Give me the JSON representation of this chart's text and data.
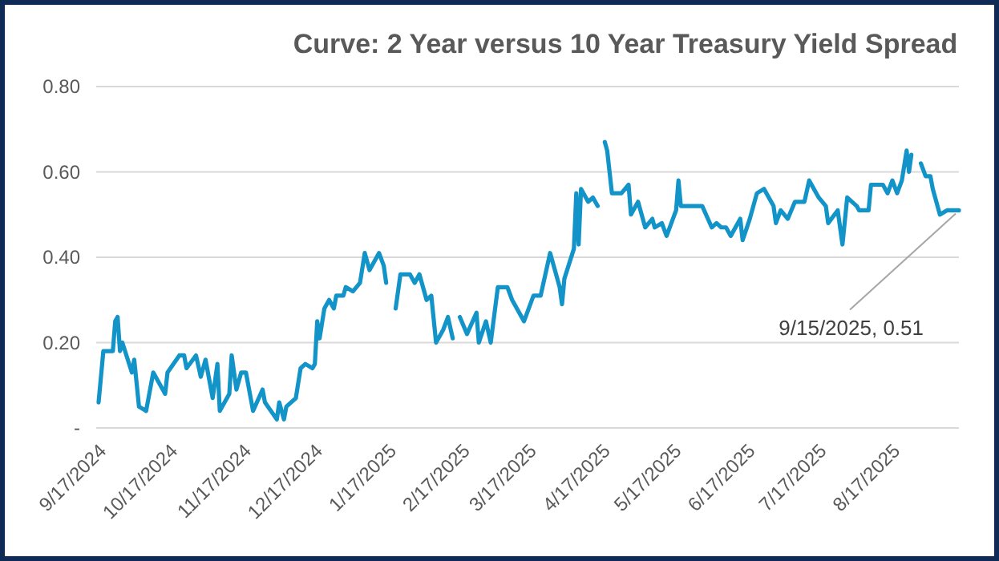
{
  "chart_data": {
    "type": "line",
    "title": "Curve: 2 Year versus 10 Year Treasury Yield Spread",
    "x": [
      "2024-09-18",
      "2024-09-20",
      "2024-09-24",
      "2024-09-25",
      "2024-09-26",
      "2024-09-27",
      "2024-09-28",
      "2024-10-02",
      "2024-10-03",
      "2024-10-05",
      "2024-10-08",
      "2024-10-11",
      "2024-10-16",
      "2024-10-17",
      "2024-10-22",
      "2024-10-24",
      "2024-10-25",
      "2024-10-29",
      "2024-10-31",
      "2024-11-02",
      "2024-11-05",
      "2024-11-07",
      "2024-11-08",
      "2024-11-12",
      "2024-11-13",
      "2024-11-15",
      "2024-11-17",
      "2024-11-19",
      "2024-11-22",
      "2024-11-26",
      "2024-11-27",
      "2024-12-02",
      "2024-12-03",
      "2024-12-05",
      "2024-12-06",
      "2024-12-10",
      "2024-12-12",
      "2024-12-14",
      "2024-12-17",
      "2024-12-18",
      "2024-12-19",
      "2024-12-20",
      "2024-12-22",
      "2024-12-24",
      "2024-12-26",
      "2024-12-27",
      "2024-12-30",
      "2024-12-31",
      "2025-01-03",
      "2025-01-06",
      "2025-01-08",
      "2025-01-10",
      "2025-01-14",
      "2025-01-16",
      "2025-01-17",
      "2025-01-19",
      "2025-01-21",
      "2025-01-23",
      "2025-01-27",
      "2025-01-29",
      "2025-01-31",
      "2025-02-03",
      "2025-02-05",
      "2025-02-07",
      "2025-02-10",
      "2025-02-12",
      "2025-02-14",
      "2025-02-15",
      "2025-02-17",
      "2025-02-20",
      "2025-02-24",
      "2025-02-25",
      "2025-02-28",
      "2025-03-02",
      "2025-03-05",
      "2025-03-09",
      "2025-03-11",
      "2025-03-16",
      "2025-03-20",
      "2025-03-23",
      "2025-03-27",
      "2025-03-31",
      "2025-04-01",
      "2025-04-02",
      "2025-04-06",
      "2025-04-07",
      "2025-04-08",
      "2025-04-09",
      "2025-04-12",
      "2025-04-14",
      "2025-04-16",
      "2025-04-18",
      "2025-04-19",
      "2025-04-20",
      "2025-04-22",
      "2025-04-26",
      "2025-04-29",
      "2025-04-30",
      "2025-05-03",
      "2025-05-06",
      "2025-05-09",
      "2025-05-10",
      "2025-05-13",
      "2025-05-15",
      "2025-05-19",
      "2025-05-20",
      "2025-05-21",
      "2025-05-28",
      "2025-05-30",
      "2025-06-03",
      "2025-06-05",
      "2025-06-07",
      "2025-06-09",
      "2025-06-11",
      "2025-06-15",
      "2025-06-16",
      "2025-06-19",
      "2025-06-22",
      "2025-06-25",
      "2025-06-29",
      "2025-06-30",
      "2025-07-02",
      "2025-07-05",
      "2025-07-08",
      "2025-07-12",
      "2025-07-14",
      "2025-07-18",
      "2025-07-21",
      "2025-07-22",
      "2025-07-26",
      "2025-07-28",
      "2025-07-30",
      "2025-08-03",
      "2025-08-04",
      "2025-08-08",
      "2025-08-09",
      "2025-08-12",
      "2025-08-14",
      "2025-08-16",
      "2025-08-18",
      "2025-08-20",
      "2025-08-22",
      "2025-08-24",
      "2025-08-25",
      "2025-08-26",
      "2025-08-28",
      "2025-08-30",
      "2025-09-01",
      "2025-09-03",
      "2025-09-04",
      "2025-09-07",
      "2025-09-10",
      "2025-09-12",
      "2025-09-15"
    ],
    "series": [
      {
        "color": "#1394c8",
        "values": [
          0.06,
          0.18,
          0.18,
          0.25,
          0.26,
          0.18,
          0.2,
          0.13,
          0.16,
          0.05,
          0.04,
          0.13,
          0.08,
          0.13,
          0.17,
          0.17,
          0.14,
          0.17,
          0.12,
          0.16,
          0.07,
          0.15,
          0.04,
          0.08,
          0.17,
          0.09,
          0.13,
          0.13,
          0.04,
          0.09,
          0.06,
          0.02,
          0.06,
          0.02,
          0.05,
          0.07,
          0.14,
          0.15,
          0.14,
          0.15,
          0.25,
          0.21,
          0.28,
          0.3,
          0.28,
          0.31,
          0.31,
          0.33,
          0.32,
          0.34,
          0.41,
          0.37,
          0.41,
          0.38,
          0.34,
          null,
          0.28,
          0.36,
          0.36,
          0.34,
          0.36,
          0.3,
          0.31,
          0.2,
          0.23,
          0.26,
          0.21,
          null,
          0.26,
          0.22,
          0.27,
          0.2,
          0.25,
          0.2,
          0.33,
          0.33,
          0.3,
          0.25,
          0.31,
          0.31,
          0.41,
          0.33,
          0.29,
          0.35,
          0.42,
          0.55,
          0.43,
          0.56,
          0.53,
          0.54,
          0.52,
          null,
          0.67,
          0.65,
          0.55,
          0.55,
          0.57,
          0.5,
          0.53,
          0.47,
          0.49,
          0.47,
          0.48,
          0.45,
          0.51,
          0.58,
          0.52,
          0.52,
          0.52,
          0.47,
          0.48,
          0.47,
          0.47,
          0.45,
          0.49,
          0.44,
          0.49,
          0.55,
          0.56,
          0.52,
          0.48,
          0.51,
          0.49,
          0.53,
          0.53,
          0.58,
          0.54,
          0.52,
          0.48,
          0.51,
          0.43,
          0.54,
          0.52,
          0.51,
          0.51,
          0.57,
          0.57,
          0.57,
          0.55,
          0.58,
          0.55,
          0.58,
          0.65,
          0.6,
          0.64,
          null,
          0.62,
          0.59,
          0.59,
          0.56,
          0.5,
          0.51,
          0.51,
          0.51
        ]
      }
    ],
    "xlim": [
      "2024-09-17",
      "2025-09-15"
    ],
    "xticks": [
      {
        "value": "2024-09-17",
        "label": "9/17/2024"
      },
      {
        "value": "2024-10-17",
        "label": "10/17/2024"
      },
      {
        "value": "2024-11-17",
        "label": "11/17/2024"
      },
      {
        "value": "2024-12-17",
        "label": "12/17/2024"
      },
      {
        "value": "2025-01-17",
        "label": "1/17/2025"
      },
      {
        "value": "2025-02-17",
        "label": "2/17/2025"
      },
      {
        "value": "2025-03-17",
        "label": "3/17/2025"
      },
      {
        "value": "2025-04-17",
        "label": "4/17/2025"
      },
      {
        "value": "2025-05-17",
        "label": "5/17/2025"
      },
      {
        "value": "2025-06-17",
        "label": "6/17/2025"
      },
      {
        "value": "2025-07-17",
        "label": "7/17/2025"
      },
      {
        "value": "2025-08-17",
        "label": "8/17/2025"
      }
    ],
    "ylim": [
      0,
      0.8
    ],
    "yticks": [
      {
        "value": 0,
        "label": "-"
      },
      {
        "value": 0.2,
        "label": "0.20"
      },
      {
        "value": 0.4,
        "label": "0.40"
      },
      {
        "value": 0.6,
        "label": "0.60"
      },
      {
        "value": 0.8,
        "label": "0.80"
      }
    ],
    "grid": "y",
    "annotations": [
      {
        "text": "9/15/2025, 0.51",
        "x": "2025-09-15",
        "y": 0.51
      }
    ]
  }
}
